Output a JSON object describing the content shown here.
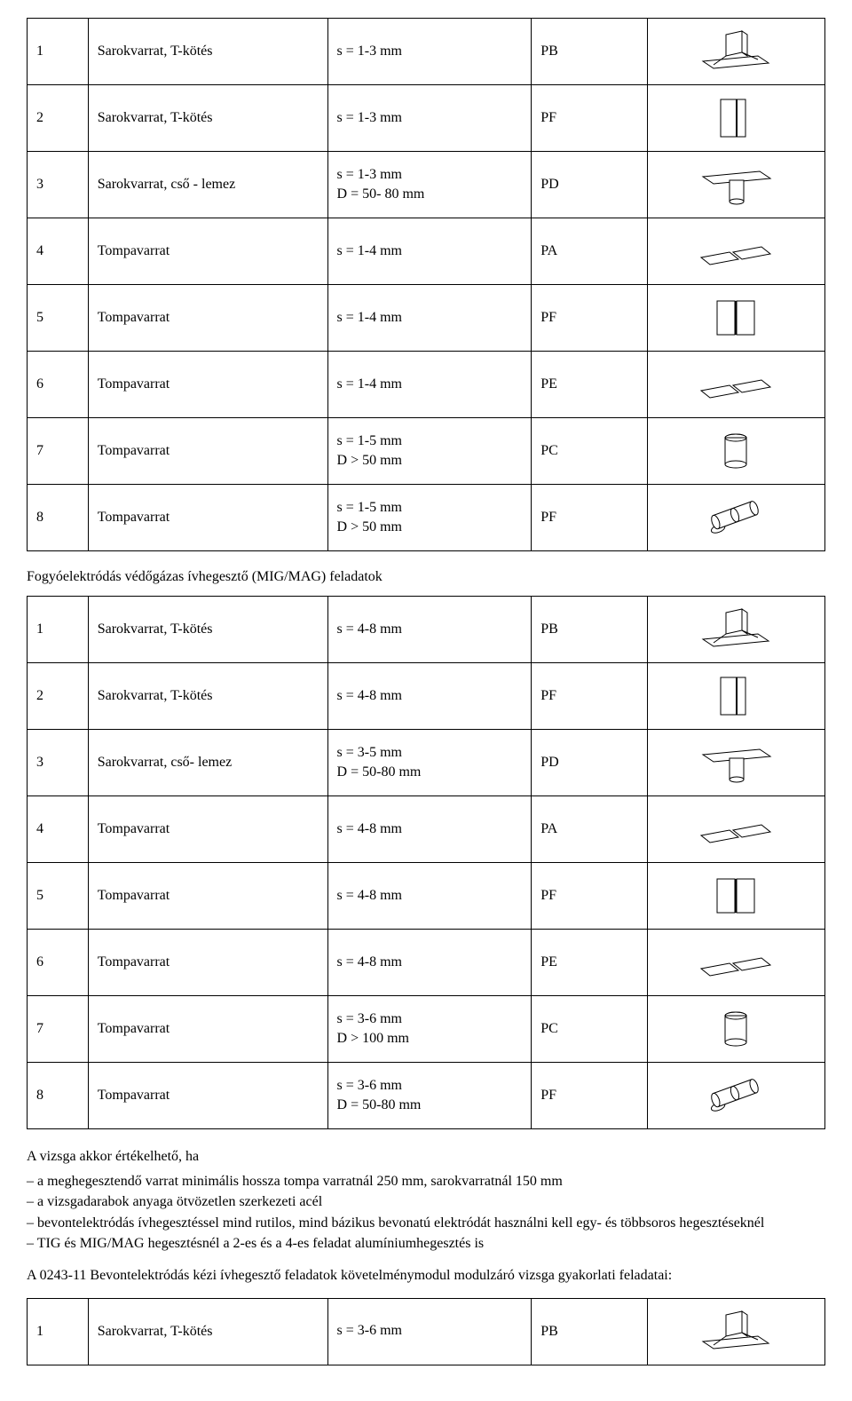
{
  "table1": {
    "rows": [
      {
        "n": "1",
        "name": "Sarokvarrat, T-kötés",
        "spec": "s = 1-3 mm",
        "pos": "PB",
        "icon": "t-flat"
      },
      {
        "n": "2",
        "name": "Sarokvarrat, T-kötés",
        "spec": "s = 1-3 mm",
        "pos": "PF",
        "icon": "t-vert"
      },
      {
        "n": "3",
        "name": "Sarokvarrat, cső - lemez",
        "spec": "s = 1-3 mm\nD = 50- 80 mm",
        "pos": "PD",
        "icon": "pipe-plate"
      },
      {
        "n": "4",
        "name": "Tompavarrat",
        "spec": "s = 1-4 mm",
        "pos": "PA",
        "icon": "butt-flat"
      },
      {
        "n": "5",
        "name": "Tompavarrat",
        "spec": "s = 1-4 mm",
        "pos": "PF",
        "icon": "butt-vert"
      },
      {
        "n": "6",
        "name": "Tompavarrat",
        "spec": "s = 1-4 mm",
        "pos": "PE",
        "icon": "butt-flat"
      },
      {
        "n": "7",
        "name": "Tompavarrat",
        "spec": "s = 1-5 mm\nD > 50 mm",
        "pos": "PC",
        "icon": "pipe-single"
      },
      {
        "n": "8",
        "name": "Tompavarrat",
        "spec": "s = 1-5 mm\nD > 50 mm",
        "pos": "PF",
        "icon": "pipe-double"
      }
    ]
  },
  "heading1": "Fogyóelektródás védőgázas ívhegesztő (MIG/MAG) feladatok",
  "table2": {
    "rows": [
      {
        "n": "1",
        "name": "Sarokvarrat, T-kötés",
        "spec": "s = 4-8 mm",
        "pos": "PB",
        "icon": "t-flat"
      },
      {
        "n": "2",
        "name": "Sarokvarrat, T-kötés",
        "spec": "s = 4-8 mm",
        "pos": "PF",
        "icon": "t-vert"
      },
      {
        "n": "3",
        "name": "Sarokvarrat, cső- lemez",
        "spec": "s = 3-5 mm\nD = 50-80 mm",
        "pos": "PD",
        "icon": "pipe-plate"
      },
      {
        "n": "4",
        "name": "Tompavarrat",
        "spec": "s = 4-8 mm",
        "pos": "PA",
        "icon": "butt-flat"
      },
      {
        "n": "5",
        "name": "Tompavarrat",
        "spec": "s = 4-8 mm",
        "pos": "PF",
        "icon": "butt-vert"
      },
      {
        "n": "6",
        "name": "Tompavarrat",
        "spec": "s = 4-8 mm",
        "pos": "PE",
        "icon": "butt-flat"
      },
      {
        "n": "7",
        "name": "Tompavarrat",
        "spec": "s = 3-6 mm\nD  > 100 mm",
        "pos": "PC",
        "icon": "pipe-single"
      },
      {
        "n": "8",
        "name": "Tompavarrat",
        "spec": "s = 3-6 mm\nD = 50-80 mm",
        "pos": "PF",
        "icon": "pipe-double"
      }
    ]
  },
  "eval_intro": "A vizsga akkor értékelhető, ha",
  "eval_points": [
    "a meghegesztendő varrat minimális hossza tompa varratnál 250 mm, sarokvarratnál 150 mm",
    "a vizsgadarabok anyaga ötvözetlen szerkezeti acél",
    "bevontelektródás ívhegesztéssel mind rutilos, mind bázikus bevonatú elektródát használni kell egy- és többsoros hegesztéseknél",
    "TIG és MIG/MAG hegesztésnél a 2-es és a 4-es feladat alumíniumhegesztés is"
  ],
  "para2": "A 0243-11 Bevontelektródás kézi ívhegesztő feladatok követelménymodul modulzáró vizsga gyakorlati feladatai:",
  "table3": {
    "rows": [
      {
        "n": "1",
        "name": "Sarokvarrat, T-kötés",
        "spec": "s = 3-6 mm",
        "pos": "PB",
        "icon": "t-flat"
      }
    ]
  },
  "icons": {
    "stroke": "#000000",
    "fill": "#ffffff",
    "hatch": "#bfbfbf"
  }
}
